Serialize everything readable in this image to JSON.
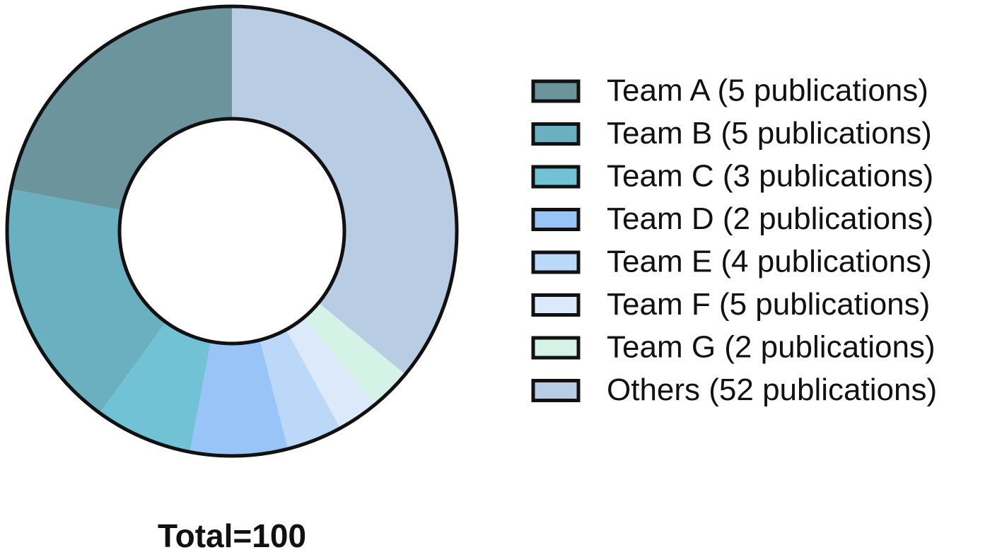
{
  "chart_data": {
    "type": "donut",
    "categories": [
      "Team A (5 publications)",
      "Team B (5 publications)",
      "Team C (3 publications)",
      "Team D (2 publications)",
      "Team E (4 publications)",
      "Team F (5 publications)",
      "Team G (2 publications)",
      "Others (52 publications)"
    ],
    "values": [
      22,
      18,
      7,
      7,
      4,
      3,
      3,
      36
    ],
    "colors": [
      "#6b949c",
      "#6ab0c0",
      "#70c2d4",
      "#99c4f8",
      "#bcd8f8",
      "#dce9fb",
      "#d4f2e6",
      "#b8cce4"
    ],
    "annotation": "Total=100",
    "legend": "right"
  }
}
